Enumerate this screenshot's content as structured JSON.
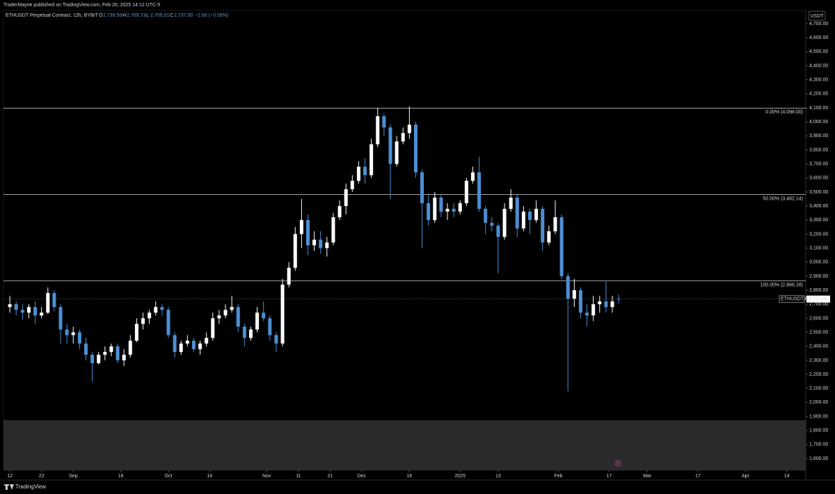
{
  "header": {
    "published": "TraderMayne published on TradingView.com, Feb 20, 2025 14:12 UTC-5",
    "symbol": "ETHUSDT Perpetual Contract, 12h, BYBIT",
    "ohlc": [
      {
        "label": "O",
        "value": "2,739.56"
      },
      {
        "label": "H",
        "value": "2,769.73"
      },
      {
        "label": "L",
        "value": "2,705.01"
      },
      {
        "label": "C",
        "value": "2,737.00"
      }
    ],
    "change": "−2.56 (−0.09%)",
    "footer": "TradingView"
  },
  "chart_data": {
    "type": "candlestick",
    "unit": "USDT",
    "up_color": "#ffffff",
    "down_color": "#4b8fd4",
    "grid": false,
    "ylim": [
      1516,
      4794
    ],
    "yticks": [
      {
        "value": 1600,
        "label": "1,600.00"
      },
      {
        "value": 1700,
        "label": "1,700.00"
      },
      {
        "value": 1800,
        "label": "1,800.00"
      },
      {
        "value": 1900,
        "label": "1,900.00"
      },
      {
        "value": 2000,
        "label": "2,000.00"
      },
      {
        "value": 2100,
        "label": "2,100.00"
      },
      {
        "value": 2200,
        "label": "2,200.00"
      },
      {
        "value": 2300,
        "label": "2,300.00"
      },
      {
        "value": 2400,
        "label": "2,400.00"
      },
      {
        "value": 2500,
        "label": "2,500.00"
      },
      {
        "value": 2600,
        "label": "2,600.00"
      },
      {
        "value": 2700,
        "label": "2,700.00"
      },
      {
        "value": 2800,
        "label": "2,800.00"
      },
      {
        "value": 2900,
        "label": "2,900.00"
      },
      {
        "value": 3000,
        "label": "3,000.00"
      },
      {
        "value": 3100,
        "label": "3,100.00"
      },
      {
        "value": 3200,
        "label": "3,200.00"
      },
      {
        "value": 3300,
        "label": "3,300.00"
      },
      {
        "value": 3400,
        "label": "3,400.00"
      },
      {
        "value": 3500,
        "label": "3,500.00"
      },
      {
        "value": 3600,
        "label": "3,600.00"
      },
      {
        "value": 3700,
        "label": "3,700.00"
      },
      {
        "value": 3800,
        "label": "3,800.00"
      },
      {
        "value": 3900,
        "label": "3,900.00"
      },
      {
        "value": 4000,
        "label": "4,000.00"
      },
      {
        "value": 4100,
        "label": "4,100.00"
      },
      {
        "value": 4200,
        "label": "4,200.00"
      },
      {
        "value": 4300,
        "label": "4,300.00"
      },
      {
        "value": 4400,
        "label": "4,400.00"
      },
      {
        "value": 4500,
        "label": "4,500.00"
      },
      {
        "value": 4600,
        "label": "4,600.00"
      },
      {
        "value": 4700,
        "label": "4,700.00"
      }
    ],
    "xlim": [
      "2024-08-10",
      "2025-04-20"
    ],
    "xticks": [
      {
        "value": "2024-08-12",
        "label": "12"
      },
      {
        "value": "2024-08-22",
        "label": "22"
      },
      {
        "value": "2024-09-01",
        "label": "Sep"
      },
      {
        "value": "2024-09-16",
        "label": "16"
      },
      {
        "value": "2024-10-01",
        "label": "Oct"
      },
      {
        "value": "2024-10-14",
        "label": "14"
      },
      {
        "value": "2024-11-01",
        "label": "Nov"
      },
      {
        "value": "2024-11-11",
        "label": "11"
      },
      {
        "value": "2024-11-21",
        "label": "21"
      },
      {
        "value": "2024-12-01",
        "label": "Dec"
      },
      {
        "value": "2024-12-16",
        "label": "16"
      },
      {
        "value": "2025-01-01",
        "label": "2025"
      },
      {
        "value": "2025-01-13",
        "label": "13"
      },
      {
        "value": "2025-02-01",
        "label": "Feb"
      },
      {
        "value": "2025-02-17",
        "label": "17"
      },
      {
        "value": "2025-03-01",
        "label": "Mar"
      },
      {
        "value": "2025-03-17",
        "label": "17"
      },
      {
        "value": "2025-04-01",
        "label": "Apr"
      },
      {
        "value": "2025-04-14",
        "label": "14"
      }
    ],
    "levels": [
      {
        "label": "0.00% (4,098.00)",
        "value": 4098
      },
      {
        "label": "50.00% (3,482.14)",
        "value": 3482.14
      },
      {
        "label": "100.00% (2,866.28)",
        "value": 2866.28
      }
    ],
    "last": {
      "symbol": "ETHUSDT.P",
      "value": 2737,
      "label": "2,737.00"
    },
    "x": [
      "2024-08-12",
      "2024-08-14",
      "2024-08-16",
      "2024-08-18",
      "2024-08-20",
      "2024-08-22",
      "2024-08-24",
      "2024-08-26",
      "2024-08-28",
      "2024-08-30",
      "2024-09-01",
      "2024-09-03",
      "2024-09-05",
      "2024-09-07",
      "2024-09-09",
      "2024-09-11",
      "2024-09-13",
      "2024-09-15",
      "2024-09-17",
      "2024-09-19",
      "2024-09-21",
      "2024-09-23",
      "2024-09-25",
      "2024-09-27",
      "2024-09-29",
      "2024-10-01",
      "2024-10-03",
      "2024-10-05",
      "2024-10-07",
      "2024-10-09",
      "2024-10-11",
      "2024-10-13",
      "2024-10-15",
      "2024-10-17",
      "2024-10-19",
      "2024-10-21",
      "2024-10-23",
      "2024-10-25",
      "2024-10-27",
      "2024-10-29",
      "2024-10-31",
      "2024-11-02",
      "2024-11-04",
      "2024-11-06",
      "2024-11-08",
      "2024-11-10",
      "2024-11-12",
      "2024-11-14",
      "2024-11-16",
      "2024-11-18",
      "2024-11-20",
      "2024-11-22",
      "2024-11-24",
      "2024-11-26",
      "2024-11-28",
      "2024-11-30",
      "2024-12-02",
      "2024-12-04",
      "2024-12-06",
      "2024-12-08",
      "2024-12-10",
      "2024-12-12",
      "2024-12-14",
      "2024-12-16",
      "2024-12-18",
      "2024-12-20",
      "2024-12-22",
      "2024-12-24",
      "2024-12-26",
      "2024-12-28",
      "2024-12-30",
      "2025-01-01",
      "2025-01-03",
      "2025-01-05",
      "2025-01-07",
      "2025-01-09",
      "2025-01-11",
      "2025-01-13",
      "2025-01-15",
      "2025-01-17",
      "2025-01-19",
      "2025-01-21",
      "2025-01-23",
      "2025-01-25",
      "2025-01-27",
      "2025-01-29",
      "2025-01-31",
      "2025-02-02",
      "2025-02-04",
      "2025-02-06",
      "2025-02-08",
      "2025-02-10",
      "2025-02-12",
      "2025-02-14",
      "2025-02-16",
      "2025-02-18",
      "2025-02-20"
    ],
    "candles": [
      [
        2680,
        2760,
        2640,
        2700
      ],
      [
        2700,
        2720,
        2620,
        2660
      ],
      [
        2660,
        2700,
        2590,
        2640
      ],
      [
        2640,
        2700,
        2600,
        2680
      ],
      [
        2680,
        2720,
        2560,
        2620
      ],
      [
        2620,
        2680,
        2600,
        2640
      ],
      [
        2640,
        2820,
        2630,
        2780
      ],
      [
        2780,
        2800,
        2650,
        2680
      ],
      [
        2680,
        2700,
        2420,
        2520
      ],
      [
        2520,
        2560,
        2420,
        2480
      ],
      [
        2480,
        2540,
        2420,
        2500
      ],
      [
        2500,
        2520,
        2380,
        2420
      ],
      [
        2420,
        2460,
        2300,
        2340
      ],
      [
        2340,
        2360,
        2150,
        2280
      ],
      [
        2280,
        2360,
        2270,
        2340
      ],
      [
        2340,
        2400,
        2300,
        2360
      ],
      [
        2360,
        2420,
        2330,
        2400
      ],
      [
        2400,
        2420,
        2280,
        2300
      ],
      [
        2300,
        2380,
        2260,
        2340
      ],
      [
        2340,
        2480,
        2320,
        2440
      ],
      [
        2440,
        2600,
        2430,
        2560
      ],
      [
        2560,
        2640,
        2520,
        2600
      ],
      [
        2600,
        2660,
        2560,
        2640
      ],
      [
        2640,
        2720,
        2620,
        2680
      ],
      [
        2680,
        2700,
        2620,
        2660
      ],
      [
        2660,
        2680,
        2460,
        2480
      ],
      [
        2480,
        2500,
        2320,
        2360
      ],
      [
        2360,
        2440,
        2340,
        2420
      ],
      [
        2420,
        2480,
        2400,
        2440
      ],
      [
        2440,
        2460,
        2360,
        2380
      ],
      [
        2380,
        2440,
        2340,
        2420
      ],
      [
        2420,
        2500,
        2400,
        2460
      ],
      [
        2460,
        2640,
        2440,
        2600
      ],
      [
        2600,
        2660,
        2560,
        2620
      ],
      [
        2620,
        2700,
        2600,
        2660
      ],
      [
        2660,
        2760,
        2640,
        2680
      ],
      [
        2680,
        2700,
        2500,
        2540
      ],
      [
        2540,
        2560,
        2400,
        2460
      ],
      [
        2460,
        2540,
        2440,
        2520
      ],
      [
        2520,
        2680,
        2500,
        2640
      ],
      [
        2640,
        2720,
        2580,
        2600
      ],
      [
        2600,
        2620,
        2440,
        2480
      ],
      [
        2480,
        2500,
        2360,
        2420
      ],
      [
        2420,
        2880,
        2400,
        2840
      ],
      [
        2840,
        3000,
        2820,
        2960
      ],
      [
        2960,
        3250,
        2940,
        3200
      ],
      [
        3200,
        3450,
        3100,
        3300
      ],
      [
        3300,
        3340,
        3050,
        3120
      ],
      [
        3120,
        3220,
        3080,
        3160
      ],
      [
        3160,
        3220,
        3060,
        3100
      ],
      [
        3100,
        3180,
        3040,
        3140
      ],
      [
        3140,
        3350,
        3120,
        3320
      ],
      [
        3320,
        3440,
        3300,
        3400
      ],
      [
        3400,
        3560,
        3340,
        3520
      ],
      [
        3520,
        3620,
        3500,
        3580
      ],
      [
        3580,
        3720,
        3560,
        3680
      ],
      [
        3680,
        3740,
        3560,
        3620
      ],
      [
        3620,
        3880,
        3600,
        3840
      ],
      [
        3840,
        4100,
        3820,
        4040
      ],
      [
        4040,
        4060,
        3900,
        3960
      ],
      [
        3960,
        3980,
        3450,
        3700
      ],
      [
        3700,
        3900,
        3680,
        3860
      ],
      [
        3860,
        3960,
        3840,
        3920
      ],
      [
        3920,
        4110,
        3880,
        3980
      ],
      [
        3980,
        4000,
        3600,
        3640
      ],
      [
        3640,
        3660,
        3100,
        3420
      ],
      [
        3420,
        3480,
        3260,
        3300
      ],
      [
        3300,
        3500,
        3280,
        3460
      ],
      [
        3460,
        3480,
        3320,
        3360
      ],
      [
        3360,
        3420,
        3300,
        3380
      ],
      [
        3380,
        3420,
        3320,
        3360
      ],
      [
        3360,
        3440,
        3340,
        3420
      ],
      [
        3420,
        3600,
        3400,
        3580
      ],
      [
        3580,
        3680,
        3560,
        3640
      ],
      [
        3640,
        3750,
        3360,
        3380
      ],
      [
        3380,
        3400,
        3200,
        3280
      ],
      [
        3280,
        3320,
        3220,
        3260
      ],
      [
        3260,
        3280,
        2920,
        3180
      ],
      [
        3180,
        3420,
        3160,
        3380
      ],
      [
        3380,
        3520,
        3360,
        3460
      ],
      [
        3460,
        3480,
        3180,
        3240
      ],
      [
        3240,
        3400,
        3220,
        3360
      ],
      [
        3360,
        3380,
        3200,
        3300
      ],
      [
        3300,
        3440,
        3280,
        3380
      ],
      [
        3380,
        3400,
        3080,
        3140
      ],
      [
        3140,
        3260,
        3120,
        3220
      ],
      [
        3220,
        3440,
        3200,
        3320
      ],
      [
        3320,
        3340,
        2880,
        2900
      ],
      [
        2900,
        2920,
        2080,
        2740
      ],
      [
        2740,
        2880,
        2680,
        2800
      ],
      [
        2800,
        2820,
        2600,
        2640
      ],
      [
        2640,
        2700,
        2540,
        2620
      ],
      [
        2620,
        2760,
        2580,
        2700
      ],
      [
        2700,
        2760,
        2640,
        2720
      ],
      [
        2720,
        2860,
        2640,
        2680
      ],
      [
        2680,
        2760,
        2640,
        2720
      ],
      [
        2739.56,
        2769.73,
        2705.01,
        2737.0
      ]
    ]
  }
}
